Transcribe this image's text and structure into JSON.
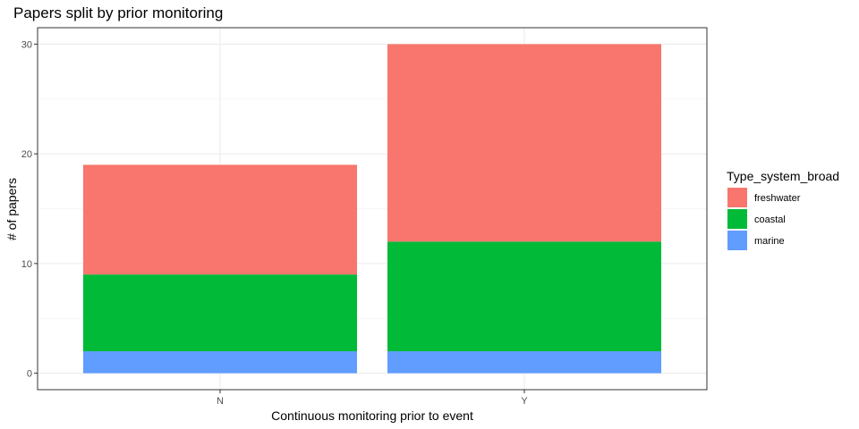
{
  "chart_data": {
    "type": "bar",
    "stacked": true,
    "title": "Papers split by prior monitoring",
    "xlabel": "Continuous monitoring prior to event",
    "ylabel": "# of papers",
    "categories": [
      "N",
      "Y"
    ],
    "ylim": [
      0,
      31.5
    ],
    "yticks": [
      0,
      10,
      20,
      30
    ],
    "grid": true,
    "legend": {
      "title": "Type_system_broad",
      "placement": "right"
    },
    "series": [
      {
        "name": "freshwater",
        "values": [
          10,
          18
        ],
        "color": "#F8766D"
      },
      {
        "name": "coastal",
        "values": [
          7,
          10
        ],
        "color": "#00BA38"
      },
      {
        "name": "marine",
        "values": [
          2,
          2
        ],
        "color": "#619CFF"
      }
    ]
  }
}
